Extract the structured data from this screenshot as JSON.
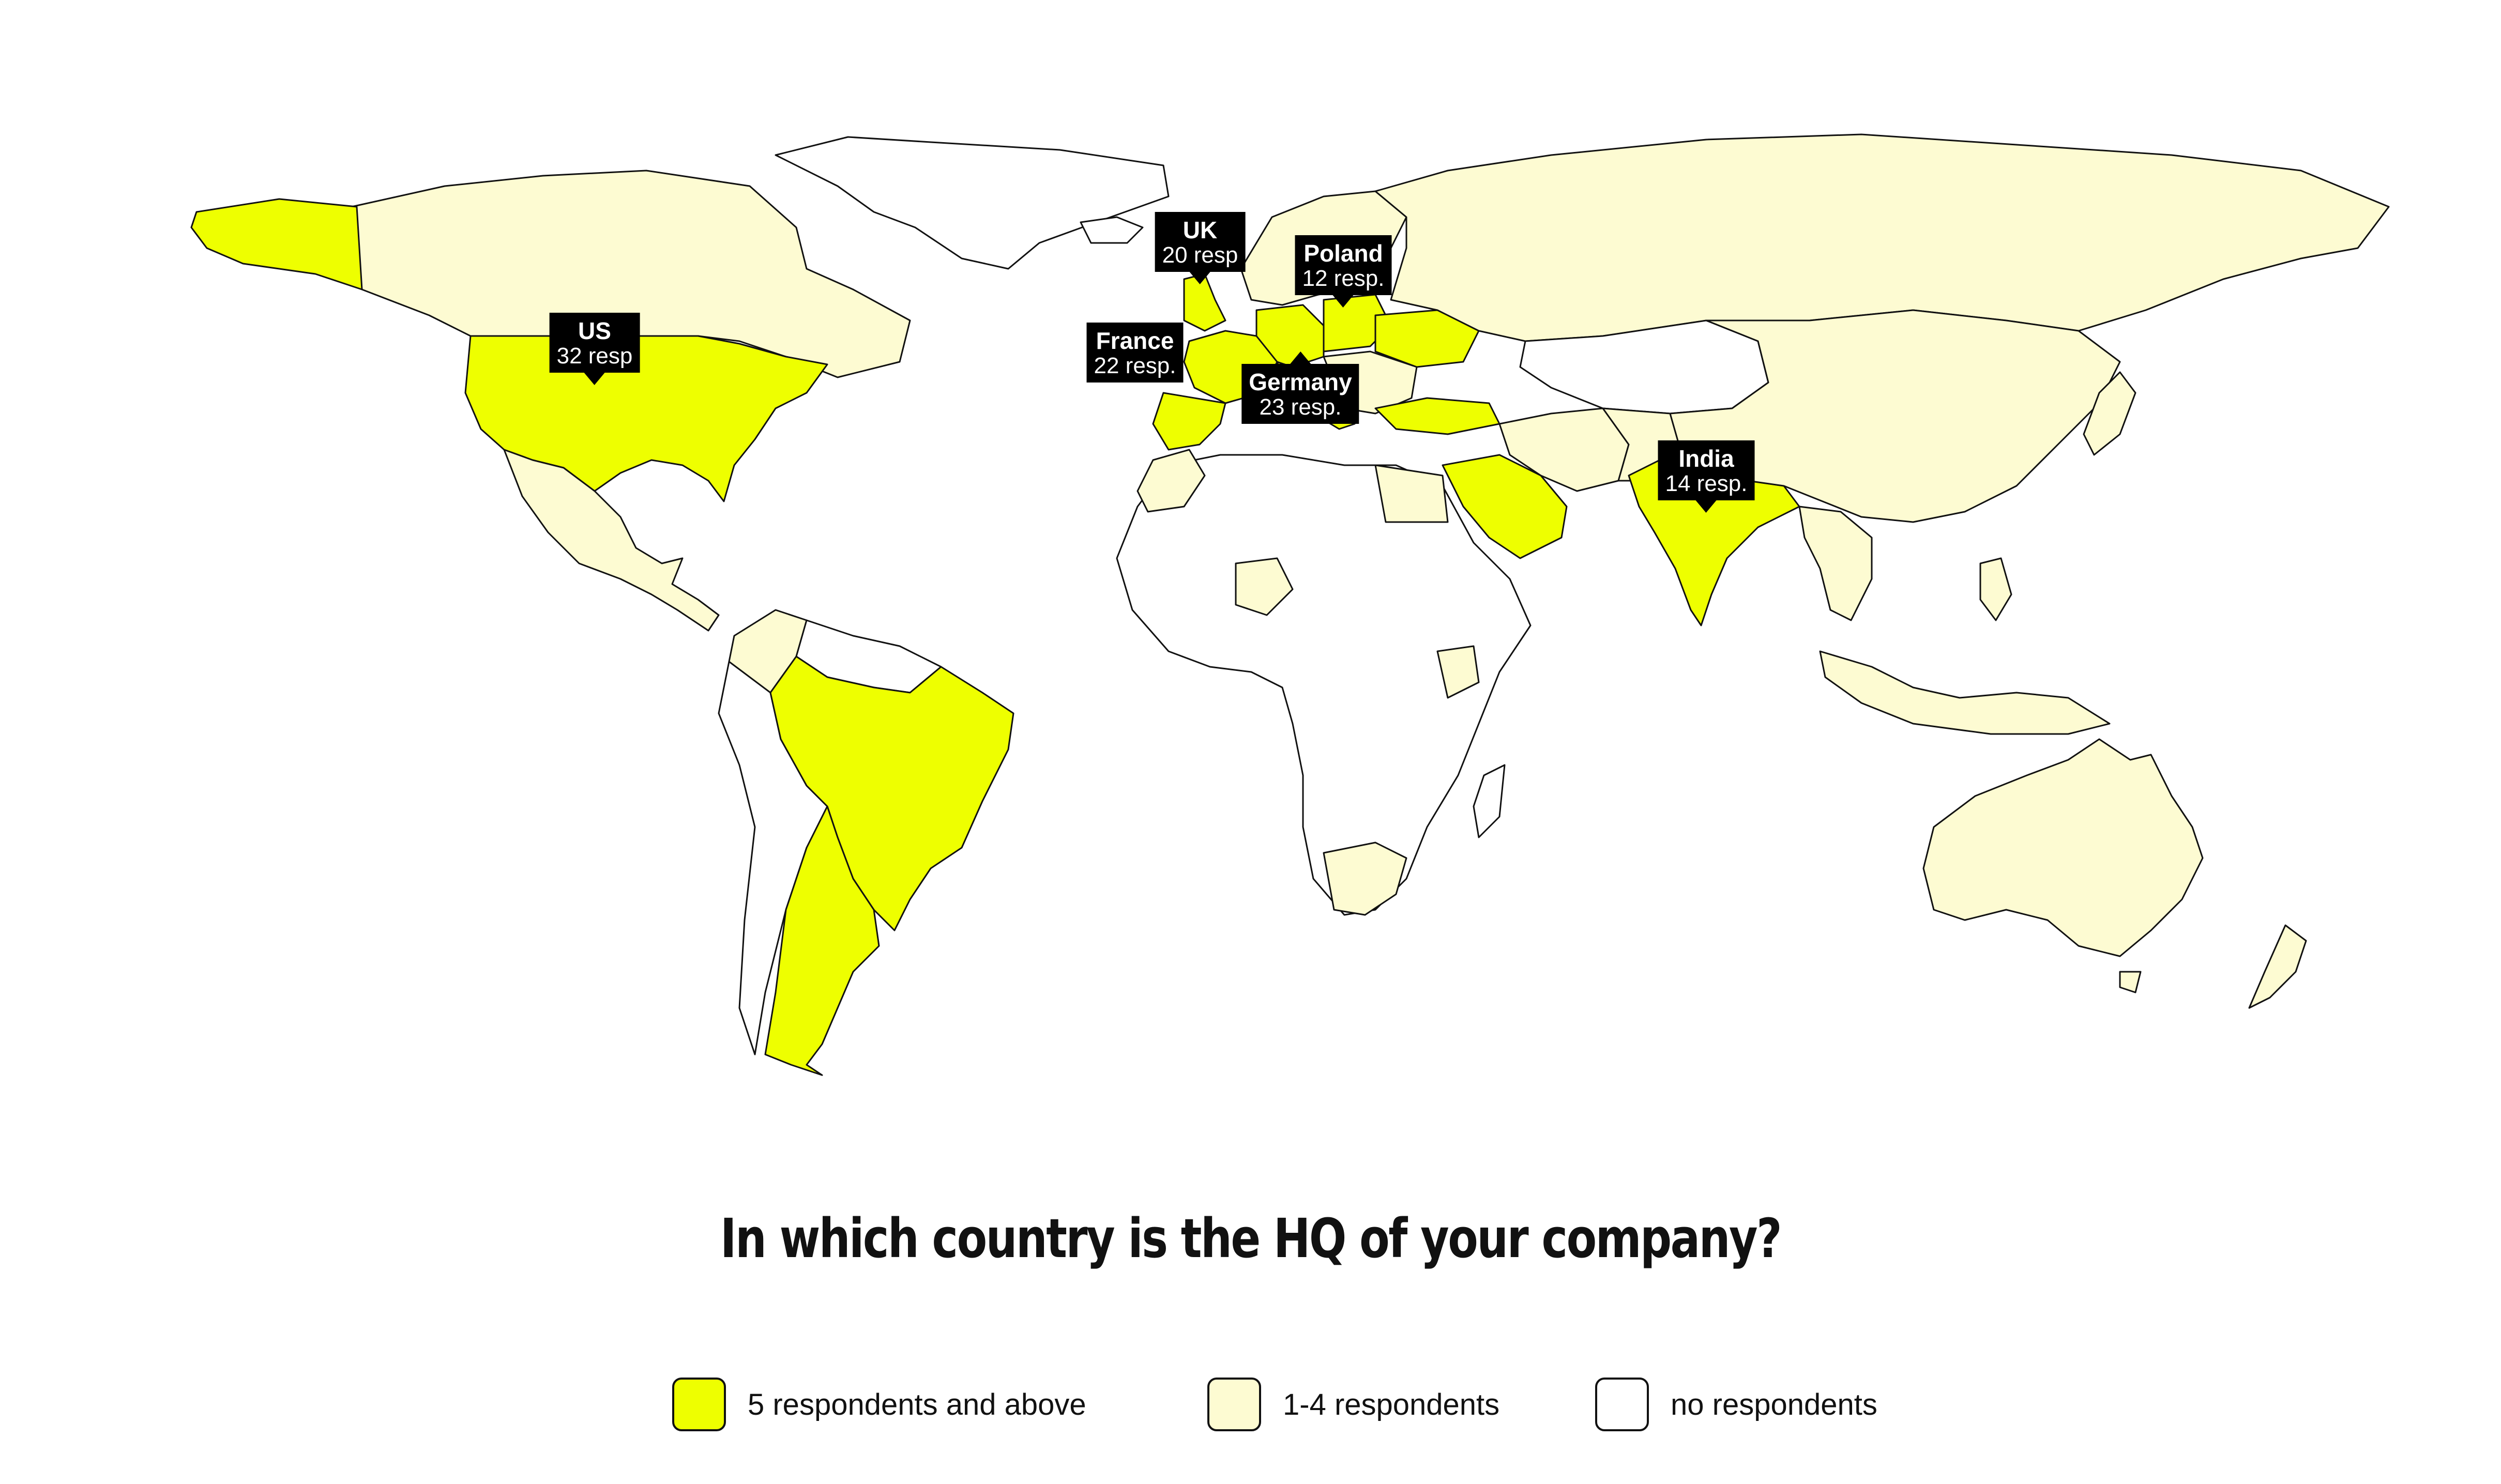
{
  "title": "In which country is the HQ of your company?",
  "colors": {
    "high": "#eeff00",
    "low": "#fdfbd2",
    "none": "#ffffff",
    "outline": "#111111",
    "callout_bg": "#000000",
    "callout_text": "#ffffff"
  },
  "callouts": [
    {
      "country": "UK",
      "count": "20 resp"
    },
    {
      "country": "Poland",
      "count": "12 resp."
    },
    {
      "country": "US",
      "count": "32 resp"
    },
    {
      "country": "France",
      "count": "22 resp."
    },
    {
      "country": "Germany",
      "count": "23 resp."
    },
    {
      "country": "India",
      "count": "14 resp."
    }
  ],
  "legend": [
    {
      "label": "5 respondents and above",
      "color": "#eeff00"
    },
    {
      "label": "1-4 respondents",
      "color": "#fdfbd2"
    },
    {
      "label": "no respondents",
      "color": "#ffffff"
    }
  ],
  "map_categories": {
    "five_and_above": [
      "US",
      "Brazil",
      "Argentina",
      "UK",
      "France",
      "Spain",
      "Germany",
      "Poland",
      "Italy",
      "Ukraine",
      "Turkey",
      "Saudi Arabia",
      "India"
    ],
    "one_to_four": [
      "Canada",
      "Mexico",
      "Russia",
      "China",
      "Australia",
      "Egypt",
      "South Africa",
      "Kenya",
      "Nigeria",
      "Colombia",
      "Morocco",
      "Pakistan",
      "Iran",
      "Philippines",
      "Indonesia",
      "Japan"
    ]
  }
}
